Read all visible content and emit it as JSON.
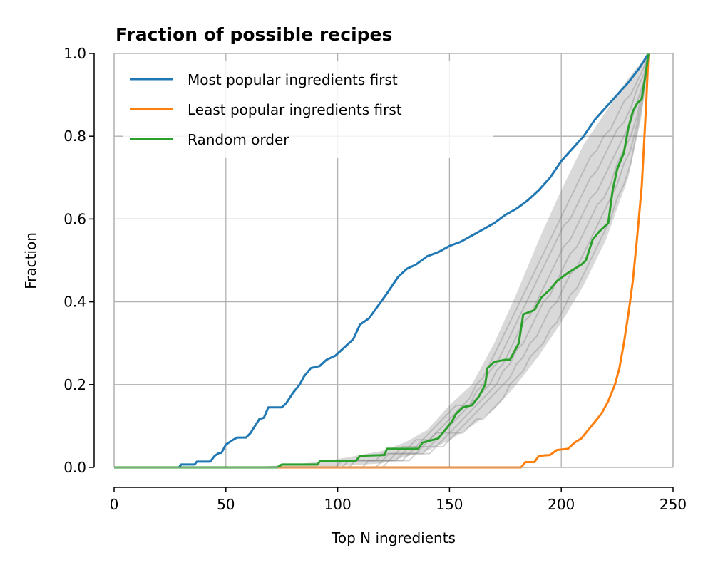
{
  "chart_data": {
    "type": "line",
    "title": "Fraction of possible recipes",
    "xlabel": "Top N ingredients",
    "ylabel": "Fraction",
    "xlim": [
      0,
      250
    ],
    "ylim": [
      0,
      1
    ],
    "x_ticks": [
      0,
      50,
      100,
      150,
      200,
      250
    ],
    "y_ticks": [
      "0.0",
      "0.2",
      "0.4",
      "0.6",
      "0.8",
      "1.0"
    ],
    "grid": true,
    "legend_position": "top-left",
    "series": [
      {
        "name": "Most popular ingredients first",
        "color": "#1f77b4",
        "points": [
          [
            0,
            0
          ],
          [
            29,
            0
          ],
          [
            30,
            0.007
          ],
          [
            36,
            0.007
          ],
          [
            37,
            0.014
          ],
          [
            43,
            0.014
          ],
          [
            45,
            0.028
          ],
          [
            47,
            0.035
          ],
          [
            48,
            0.035
          ],
          [
            50,
            0.055
          ],
          [
            53,
            0.066
          ],
          [
            55,
            0.072
          ],
          [
            59,
            0.072
          ],
          [
            61,
            0.083
          ],
          [
            63,
            0.1
          ],
          [
            65,
            0.117
          ],
          [
            67,
            0.12
          ],
          [
            69,
            0.145
          ],
          [
            75,
            0.145
          ],
          [
            77,
            0.155
          ],
          [
            80,
            0.18
          ],
          [
            83,
            0.2
          ],
          [
            85,
            0.22
          ],
          [
            88,
            0.24
          ],
          [
            92,
            0.245
          ],
          [
            95,
            0.26
          ],
          [
            99,
            0.27
          ],
          [
            103,
            0.29
          ],
          [
            107,
            0.31
          ],
          [
            110,
            0.345
          ],
          [
            114,
            0.36
          ],
          [
            118,
            0.39
          ],
          [
            122,
            0.42
          ],
          [
            127,
            0.46
          ],
          [
            131,
            0.48
          ],
          [
            135,
            0.49
          ],
          [
            140,
            0.51
          ],
          [
            145,
            0.52
          ],
          [
            150,
            0.535
          ],
          [
            155,
            0.545
          ],
          [
            160,
            0.56
          ],
          [
            165,
            0.575
          ],
          [
            170,
            0.59
          ],
          [
            175,
            0.61
          ],
          [
            180,
            0.625
          ],
          [
            185,
            0.645
          ],
          [
            190,
            0.67
          ],
          [
            195,
            0.7
          ],
          [
            200,
            0.74
          ],
          [
            205,
            0.77
          ],
          [
            210,
            0.8
          ],
          [
            215,
            0.84
          ],
          [
            220,
            0.87
          ],
          [
            225,
            0.9
          ],
          [
            230,
            0.93
          ],
          [
            235,
            0.965
          ],
          [
            239,
            1.0
          ]
        ]
      },
      {
        "name": "Least popular ingredients first",
        "color": "#ff7f0e",
        "points": [
          [
            0,
            0
          ],
          [
            182,
            0
          ],
          [
            184,
            0.013
          ],
          [
            188,
            0.013
          ],
          [
            190,
            0.028
          ],
          [
            195,
            0.03
          ],
          [
            198,
            0.042
          ],
          [
            203,
            0.045
          ],
          [
            206,
            0.06
          ],
          [
            209,
            0.07
          ],
          [
            212,
            0.09
          ],
          [
            215,
            0.11
          ],
          [
            218,
            0.13
          ],
          [
            221,
            0.16
          ],
          [
            224,
            0.2
          ],
          [
            226,
            0.24
          ],
          [
            228,
            0.3
          ],
          [
            230,
            0.37
          ],
          [
            232,
            0.45
          ],
          [
            234,
            0.56
          ],
          [
            236,
            0.68
          ],
          [
            237,
            0.78
          ],
          [
            238,
            0.88
          ],
          [
            239,
            1.0
          ]
        ]
      },
      {
        "name": "Random order",
        "color": "#2ca02c",
        "points": [
          [
            0,
            0
          ],
          [
            73,
            0
          ],
          [
            75,
            0.007
          ],
          [
            91,
            0.007
          ],
          [
            92,
            0.015
          ],
          [
            108,
            0.015
          ],
          [
            110,
            0.028
          ],
          [
            121,
            0.03
          ],
          [
            122,
            0.045
          ],
          [
            136,
            0.045
          ],
          [
            138,
            0.06
          ],
          [
            145,
            0.07
          ],
          [
            148,
            0.09
          ],
          [
            151,
            0.11
          ],
          [
            153,
            0.13
          ],
          [
            156,
            0.145
          ],
          [
            160,
            0.15
          ],
          [
            163,
            0.17
          ],
          [
            166,
            0.2
          ],
          [
            167,
            0.24
          ],
          [
            170,
            0.255
          ],
          [
            175,
            0.26
          ],
          [
            177,
            0.26
          ],
          [
            181,
            0.3
          ],
          [
            183,
            0.37
          ],
          [
            188,
            0.38
          ],
          [
            191,
            0.41
          ],
          [
            195,
            0.43
          ],
          [
            198,
            0.45
          ],
          [
            203,
            0.47
          ],
          [
            206,
            0.48
          ],
          [
            209,
            0.49
          ],
          [
            211,
            0.5
          ],
          [
            214,
            0.55
          ],
          [
            217,
            0.57
          ],
          [
            221,
            0.59
          ],
          [
            223,
            0.67
          ],
          [
            225,
            0.72
          ],
          [
            228,
            0.76
          ],
          [
            230,
            0.82
          ],
          [
            232,
            0.86
          ],
          [
            234,
            0.88
          ],
          [
            236,
            0.89
          ],
          [
            238,
            0.96
          ],
          [
            239,
            1.0
          ]
        ]
      }
    ],
    "background_band": {
      "color": "#808080",
      "description": "",
      "upper": [
        [
          0,
          0
        ],
        [
          58,
          0
        ],
        [
          75,
          0.005
        ],
        [
          95,
          0.015
        ],
        [
          110,
          0.03
        ],
        [
          120,
          0.04
        ],
        [
          130,
          0.06
        ],
        [
          140,
          0.09
        ],
        [
          150,
          0.15
        ],
        [
          160,
          0.2
        ],
        [
          170,
          0.3
        ],
        [
          180,
          0.42
        ],
        [
          190,
          0.55
        ],
        [
          200,
          0.67
        ],
        [
          210,
          0.78
        ],
        [
          220,
          0.86
        ],
        [
          230,
          0.94
        ],
        [
          239,
          1.0
        ]
      ],
      "lower": [
        [
          0,
          0
        ],
        [
          85,
          0
        ],
        [
          100,
          0.003
        ],
        [
          120,
          0.01
        ],
        [
          130,
          0.025
        ],
        [
          140,
          0.04
        ],
        [
          150,
          0.065
        ],
        [
          160,
          0.1
        ],
        [
          170,
          0.14
        ],
        [
          180,
          0.2
        ],
        [
          190,
          0.27
        ],
        [
          200,
          0.35
        ],
        [
          210,
          0.44
        ],
        [
          220,
          0.55
        ],
        [
          230,
          0.7
        ],
        [
          236,
          0.85
        ],
        [
          239,
          1.0
        ]
      ]
    }
  }
}
